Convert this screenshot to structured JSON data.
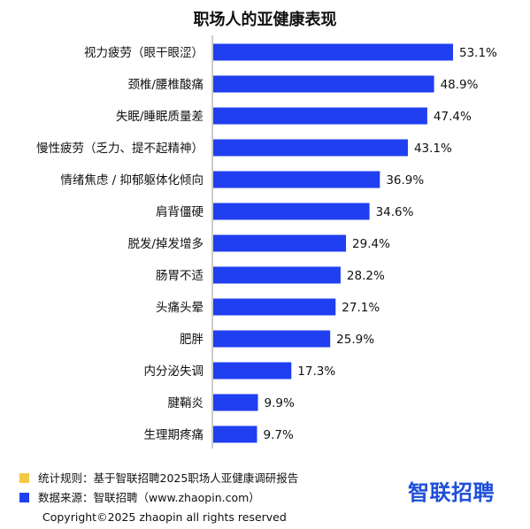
{
  "title": "职场人的亚健康表现",
  "chart_data": {
    "type": "bar",
    "orientation": "horizontal",
    "categories": [
      "视力疲劳（眼干眼涩）",
      "颈椎/腰椎酸痛",
      "失眠/睡眠质量差",
      "慢性疲劳（乏力、提不起精神）",
      "情绪焦虑 / 抑郁躯体化倾向",
      "肩背僵硬",
      "脱发/掉发增多",
      "肠胃不适",
      "头痛头晕",
      "肥胖",
      "内分泌失调",
      "腱鞘炎",
      "生理期疼痛"
    ],
    "values": [
      53.1,
      48.9,
      47.4,
      43.1,
      36.9,
      34.6,
      29.4,
      28.2,
      27.1,
      25.9,
      17.3,
      9.9,
      9.7
    ],
    "value_labels": [
      "53.1%",
      "48.9%",
      "47.4%",
      "43.1%",
      "36.9%",
      "34.6%",
      "29.4%",
      "28.2%",
      "27.1%",
      "25.9%",
      "17.3%",
      "9.9%",
      "9.7%"
    ],
    "xlim": [
      0,
      56
    ],
    "bar_color": "#1f3ff0",
    "axis_color": "#999999",
    "grid": false
  },
  "footer": {
    "note_color": "#f5c842",
    "note_text": "统计规则：基于智联招聘2025职场人亚健康调研报告",
    "source_color": "#1f3ff0",
    "source_text": "数据来源：智联招聘（www.zhaopin.com）",
    "brand": "智联招聘",
    "copyright": "Copyright©2025 zhaopin all rights reserved"
  }
}
